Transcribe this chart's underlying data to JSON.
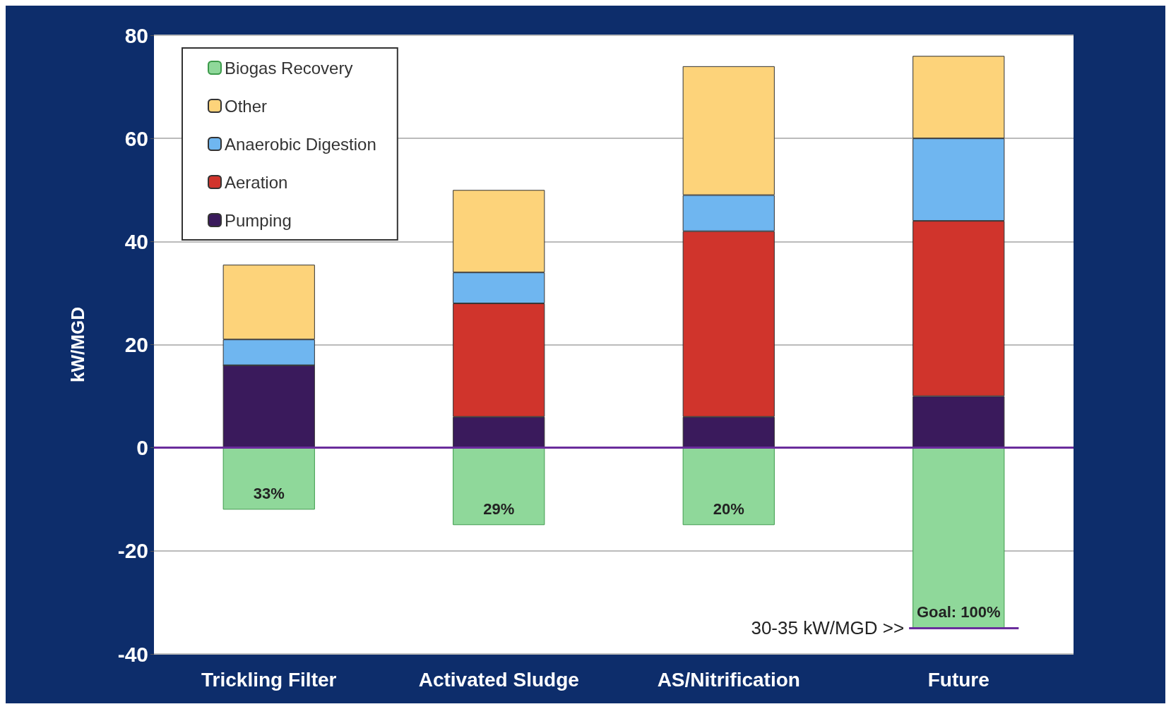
{
  "chart_data": {
    "type": "bar",
    "stacked": true,
    "ylabel": "kW/MGD",
    "categories": [
      "Trickling Filter",
      "Activated Sludge",
      "AS/Nitrification",
      "Future"
    ],
    "series": [
      {
        "name": "Pumping",
        "color": "#3a1a5c",
        "values": [
          16,
          6,
          6,
          10
        ]
      },
      {
        "name": "Aeration",
        "color": "#d0342c",
        "values": [
          0,
          22,
          36,
          34
        ]
      },
      {
        "name": "Anaerobic Digestion",
        "color": "#6fb6f0",
        "values": [
          5,
          6,
          7,
          16
        ]
      },
      {
        "name": "Other",
        "color": "#fdd37a",
        "values": [
          14.5,
          16,
          25,
          16
        ]
      },
      {
        "name": "Biogas Recovery",
        "color": "#8fd89a",
        "values": [
          -12,
          -15,
          -15,
          -35
        ]
      }
    ],
    "ylim": [
      -40,
      80
    ],
    "yticks": [
      -40,
      -20,
      0,
      20,
      40,
      60,
      80
    ],
    "grid": "y",
    "legend": "top left",
    "ref_lines": [
      {
        "axis": "y",
        "value": 0,
        "color": "#6a2c9c"
      },
      {
        "axis": "y",
        "value": -35,
        "label": "30-35 kW/MGD >>",
        "color": "#6a2c9c"
      }
    ],
    "annotations": [
      {
        "text": "33%",
        "x": "Trickling Filter",
        "y": -12
      },
      {
        "text": "29%",
        "x": "Activated Sludge",
        "y": -15
      },
      {
        "text": "20%",
        "x": "AS/Nitrification",
        "y": -15
      },
      {
        "text": "Goal: 100%",
        "x": "Future",
        "y": -35
      }
    ]
  }
}
